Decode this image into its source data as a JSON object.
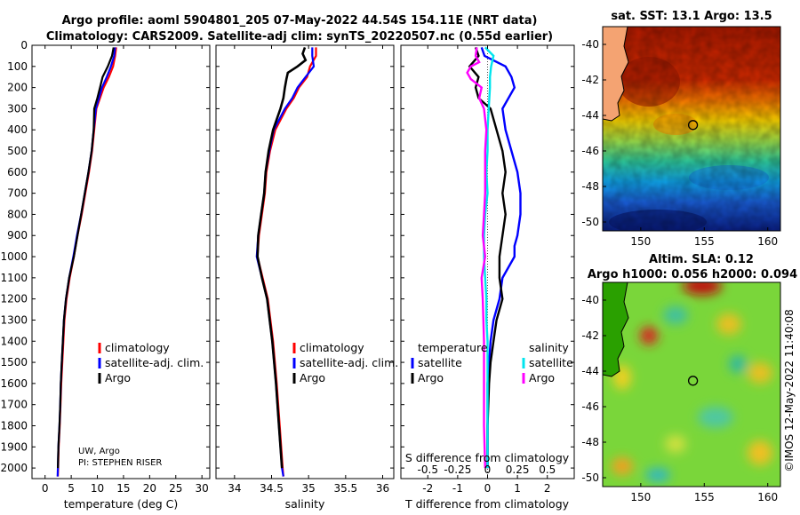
{
  "header": {
    "title_line1": "Argo profile: aoml 5904801_205 07-May-2022 44.54S 154.11E (NRT data)",
    "title_line2": "Climatology: CARS2009. Satellite-adj clim: synTS_20220507.nc (0.55d earlier)"
  },
  "colors": {
    "climatology": "#ff0000",
    "satellite_adj": "#0000ff",
    "argo": "#000000",
    "s_satellite": "#00e5ee",
    "s_argo": "#ff00ff"
  },
  "credits": {
    "line1": "UW, Argo",
    "line2": "PI: STEPHEN RISER"
  },
  "chart_data": [
    {
      "id": "temperature",
      "type": "line",
      "xlabel": "temperature (deg C)",
      "ylabel": "",
      "xlim": [
        -2.5,
        31.5
      ],
      "xticks": [
        "0",
        "5",
        "10",
        "15",
        "20",
        "25",
        "30"
      ],
      "xtick_values": [
        0,
        5,
        10,
        15,
        20,
        25,
        30
      ],
      "ylim": [
        2050,
        0
      ],
      "yticks": [
        "0",
        "100",
        "200",
        "300",
        "400",
        "500",
        "600",
        "700",
        "800",
        "900",
        "1000",
        "1100",
        "1200",
        "1300",
        "1400",
        "1500",
        "1600",
        "1700",
        "1800",
        "1900",
        "2000"
      ],
      "ytick_values": [
        0,
        100,
        200,
        300,
        400,
        500,
        600,
        700,
        800,
        900,
        1000,
        1100,
        1200,
        1300,
        1400,
        1500,
        1600,
        1700,
        1800,
        1900,
        2000
      ],
      "legend": [
        "climatology",
        "satellite-adj. clim.",
        "Argo"
      ],
      "series": [
        {
          "name": "climatology",
          "color_key": "climatology",
          "depth": [
            10,
            50,
            100,
            150,
            200,
            300,
            400,
            500,
            600,
            700,
            800,
            900,
            1000,
            1100,
            1200,
            1300,
            1400,
            1500,
            1600,
            1700,
            1800,
            1900,
            2000,
            2040
          ],
          "values": [
            13.6,
            13.4,
            13.0,
            12.2,
            11.2,
            9.8,
            9.4,
            9.0,
            8.4,
            7.7,
            7.0,
            6.2,
            5.5,
            4.7,
            4.1,
            3.7,
            3.5,
            3.3,
            3.1,
            2.95,
            2.8,
            2.6,
            2.5,
            2.45
          ]
        },
        {
          "name": "satellite-adj. clim.",
          "color_key": "satellite_adj",
          "depth": [
            10,
            50,
            100,
            150,
            200,
            300,
            400,
            500,
            600,
            700,
            800,
            900,
            1000,
            1100,
            1200,
            1300,
            1400,
            1500,
            1600,
            1700,
            1800,
            1900,
            2000,
            2040
          ],
          "values": [
            13.4,
            13.2,
            12.6,
            11.8,
            10.9,
            9.7,
            9.3,
            8.9,
            8.3,
            7.6,
            6.9,
            6.1,
            5.4,
            4.6,
            4.0,
            3.6,
            3.4,
            3.2,
            3.0,
            2.9,
            2.75,
            2.55,
            2.45,
            2.4
          ]
        },
        {
          "name": "Argo",
          "color_key": "argo",
          "depth": [
            10,
            50,
            100,
            150,
            200,
            250,
            300,
            400,
            500,
            600,
            700,
            800,
            900,
            1000,
            1100,
            1200,
            1300,
            1400,
            1500,
            1600,
            1700,
            1800,
            1900,
            2000
          ],
          "values": [
            13.1,
            12.8,
            12.0,
            11.0,
            10.5,
            10.0,
            9.4,
            9.3,
            8.9,
            8.3,
            7.6,
            6.9,
            6.2,
            5.5,
            4.6,
            4.0,
            3.6,
            3.4,
            3.2,
            3.0,
            2.9,
            2.75,
            2.55,
            2.45
          ]
        }
      ]
    },
    {
      "id": "salinity",
      "type": "line",
      "xlabel": "salinity",
      "ylabel": "",
      "xlim": [
        33.75,
        36.15
      ],
      "xticks": [
        "34",
        "34.5",
        "35",
        "35.5",
        "36"
      ],
      "xtick_values": [
        34,
        34.5,
        35,
        35.5,
        36
      ],
      "ylim": [
        2050,
        0
      ],
      "legend": [
        "climatology",
        "satellite-adj. clim.",
        "Argo"
      ],
      "series": [
        {
          "name": "climatology",
          "color_key": "climatology",
          "depth": [
            10,
            50,
            100,
            150,
            200,
            250,
            300,
            400,
            500,
            600,
            700,
            800,
            900,
            1000,
            1100,
            1200,
            1400,
            1600,
            1800,
            2000,
            2040
          ],
          "values": [
            35.1,
            35.1,
            35.02,
            34.98,
            34.87,
            34.8,
            34.7,
            34.55,
            34.48,
            34.43,
            34.41,
            34.37,
            34.33,
            34.31,
            34.38,
            34.45,
            34.52,
            34.57,
            34.61,
            34.65,
            34.66
          ]
        },
        {
          "name": "satellite-adj. clim.",
          "color_key": "satellite_adj",
          "depth": [
            10,
            50,
            100,
            150,
            200,
            250,
            300,
            400,
            500,
            600,
            700,
            800,
            900,
            1000,
            1100,
            1200,
            1400,
            1600,
            1800,
            2000,
            2040
          ],
          "values": [
            35.05,
            35.05,
            35.07,
            34.96,
            34.85,
            34.78,
            34.68,
            34.53,
            34.47,
            34.42,
            34.4,
            34.36,
            34.32,
            34.3,
            34.37,
            34.44,
            34.51,
            34.56,
            34.6,
            34.64,
            34.66
          ]
        },
        {
          "name": "Argo",
          "color_key": "argo",
          "depth": [
            10,
            40,
            70,
            100,
            130,
            160,
            200,
            250,
            300,
            400,
            500,
            600,
            700,
            800,
            900,
            1000,
            1100,
            1200,
            1400,
            1600,
            1800,
            2000
          ],
          "values": [
            34.95,
            34.92,
            34.96,
            34.85,
            34.72,
            34.7,
            34.68,
            34.66,
            34.62,
            34.52,
            34.46,
            34.42,
            34.4,
            34.36,
            34.32,
            34.31,
            34.37,
            34.44,
            34.51,
            34.56,
            34.6,
            34.64
          ]
        }
      ]
    },
    {
      "id": "difference",
      "type": "line",
      "xlabel": "T difference from climatology",
      "x2label": "S difference from climatology",
      "xlim": [
        -2.9,
        2.9
      ],
      "xticks": [
        "-2",
        "-1",
        "0",
        "1",
        "2"
      ],
      "xtick_values": [
        -2,
        -1,
        0,
        1,
        2
      ],
      "x2ticks": [
        "-0.5",
        "-0.25",
        "0",
        "0.25",
        "0.5"
      ],
      "x2tick_values": [
        -0.5,
        -0.25,
        0,
        0.25,
        0.5
      ],
      "ylim": [
        2050,
        0
      ],
      "legend_temperature_title": "temperature",
      "legend_salinity_title": "salinity",
      "legend_temperature": [
        "satellite",
        "Argo"
      ],
      "legend_salinity": [
        "satellite",
        "Argo"
      ],
      "series": [
        {
          "name": "T satellite",
          "color_key": "satellite_adj",
          "depth": [
            10,
            50,
            100,
            150,
            200,
            300,
            400,
            500,
            600,
            700,
            800,
            900,
            950,
            1000,
            1100,
            1200,
            1300,
            1400,
            1500,
            1600,
            1800,
            2000
          ],
          "values": [
            -0.2,
            -0.1,
            0.6,
            0.8,
            0.9,
            0.5,
            0.6,
            0.8,
            1.0,
            1.1,
            1.1,
            1.0,
            0.9,
            0.9,
            0.5,
            0.4,
            0.2,
            0.1,
            0.05,
            0.0,
            0.0,
            0.0
          ]
        },
        {
          "name": "T Argo",
          "color_key": "argo",
          "depth": [
            10,
            50,
            100,
            150,
            200,
            250,
            300,
            400,
            500,
            600,
            700,
            800,
            900,
            1000,
            1100,
            1200,
            1300,
            1400,
            1500,
            1600,
            1800,
            2000
          ],
          "values": [
            -0.4,
            -0.3,
            -0.6,
            -0.3,
            -0.4,
            -0.3,
            0.1,
            0.3,
            0.5,
            0.6,
            0.5,
            0.6,
            0.5,
            0.4,
            0.4,
            0.5,
            0.3,
            0.2,
            0.1,
            0.05,
            0.0,
            0.0
          ]
        },
        {
          "name": "S satellite",
          "color_key": "s_satellite",
          "depth": [
            10,
            50,
            100,
            150,
            200,
            300,
            400,
            500,
            600,
            700,
            800,
            900,
            1000,
            1100,
            1200,
            1300,
            1400,
            1600,
            1800,
            2000
          ],
          "values": [
            -0.02,
            0.05,
            0.03,
            0.02,
            0.02,
            0.01,
            0.0,
            0.0,
            -0.01,
            0.0,
            -0.02,
            -0.03,
            -0.03,
            -0.02,
            -0.01,
            -0.01,
            0.0,
            0.0,
            0.0,
            0.0
          ]
        },
        {
          "name": "S Argo",
          "color_key": "s_argo",
          "depth": [
            10,
            50,
            80,
            100,
            130,
            160,
            200,
            250,
            300,
            400,
            500,
            600,
            700,
            800,
            900,
            1000,
            1100,
            1200,
            1400,
            1600,
            1800,
            2000
          ],
          "values": [
            -0.09,
            -0.1,
            -0.07,
            -0.14,
            -0.17,
            -0.14,
            -0.05,
            -0.07,
            -0.03,
            -0.01,
            -0.02,
            -0.02,
            -0.02,
            -0.03,
            -0.04,
            -0.02,
            -0.05,
            -0.04,
            -0.03,
            -0.03,
            -0.03,
            -0.02
          ]
        }
      ]
    },
    {
      "id": "sst_map",
      "type": "heatmap",
      "title": "sat. SST: 13.1 Argo: 13.5",
      "xlim": [
        147,
        161
      ],
      "ylim": [
        -50.5,
        -39
      ],
      "xticks": [
        "150",
        "155",
        "160"
      ],
      "xtick_values": [
        150,
        155,
        160
      ],
      "yticks": [
        "-40",
        "-42",
        "-44",
        "-46",
        "-48",
        "-50"
      ],
      "ytick_values": [
        -40,
        -42,
        -44,
        -46,
        -48,
        -50
      ],
      "argo_location": [
        154.11,
        -44.54
      ],
      "sst_bands": [
        {
          "lat": -39.5,
          "value": 17.5
        },
        {
          "lat": -42.5,
          "value": 15.5
        },
        {
          "lat": -44.5,
          "value": 13.5
        },
        {
          "lat": -46.5,
          "value": 11.5
        },
        {
          "lat": -48.5,
          "value": 9.5
        },
        {
          "lat": -50.0,
          "value": 8.0
        }
      ]
    },
    {
      "id": "sla_map",
      "type": "heatmap",
      "title_line1": "Altim. SLA: 0.12",
      "title_line2": "Argo h1000: 0.056 h2000: 0.094",
      "xlim": [
        147,
        161
      ],
      "ylim": [
        -50.5,
        -39
      ],
      "xticks": [
        "150",
        "155",
        "160"
      ],
      "xtick_values": [
        150,
        155,
        160
      ],
      "yticks": [
        "-40",
        "-42",
        "-44",
        "-46",
        "-48",
        "-50"
      ],
      "ytick_values": [
        -40,
        -42,
        -44,
        -46,
        -48,
        -50
      ],
      "argo_location": [
        154.11,
        -44.54
      ],
      "watermark": "©IMOS 12-May-2022 11:40:08"
    }
  ]
}
